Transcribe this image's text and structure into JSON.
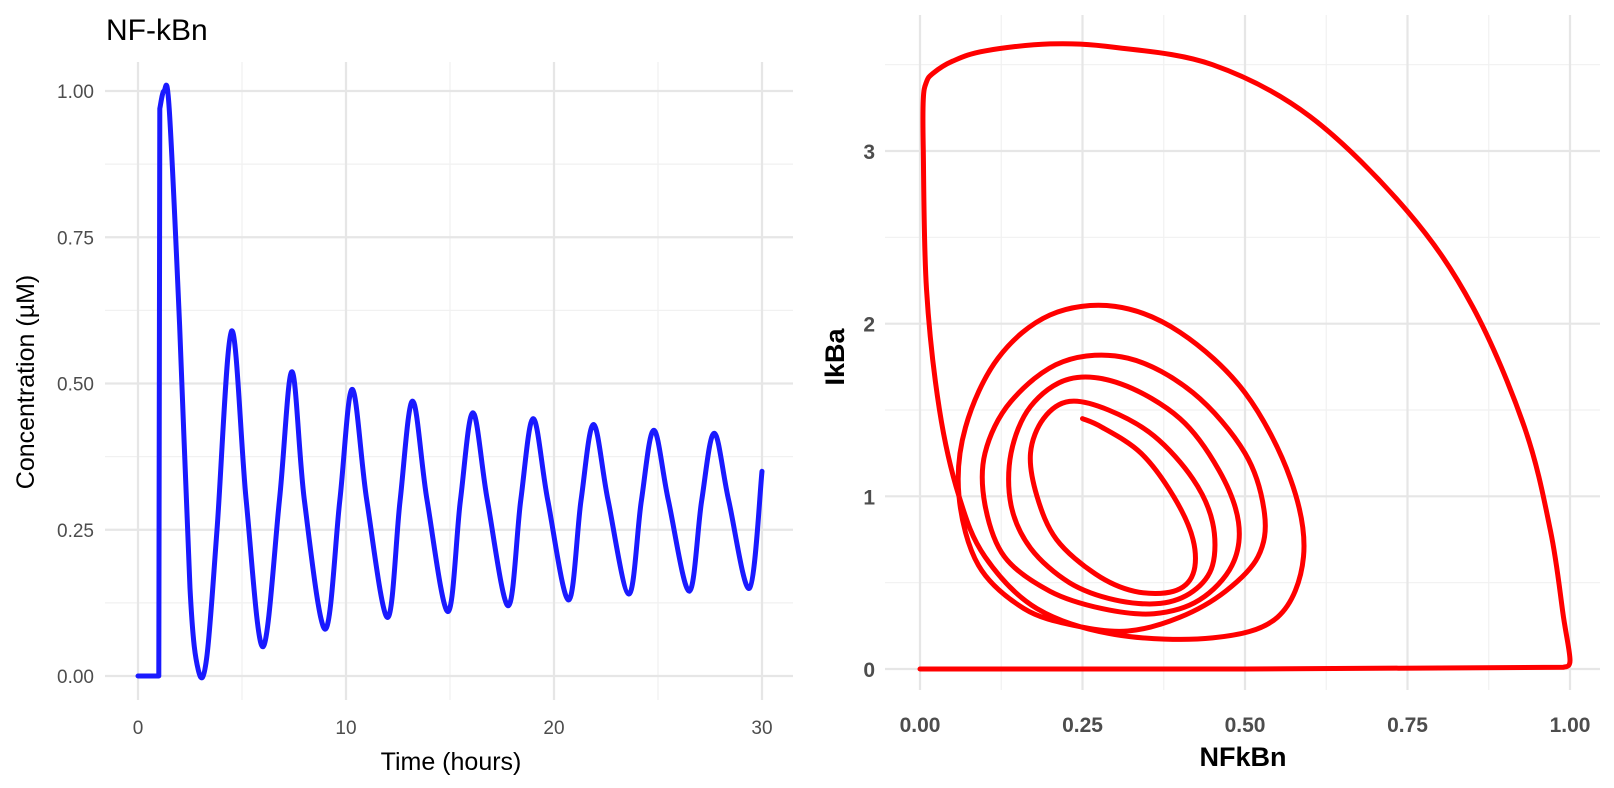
{
  "chart_data": [
    {
      "type": "line",
      "title": "NF-kBn",
      "xlabel": "Time (hours)",
      "ylabel": "Concentration (µM)",
      "xlim": [
        0,
        30
      ],
      "ylim": [
        0,
        1
      ],
      "x_ticks": [
        "0",
        "10",
        "20",
        "30"
      ],
      "y_ticks": [
        "0.00",
        "0.25",
        "0.50",
        "0.75",
        "1.00"
      ],
      "grid": true,
      "color": "#1a1aff",
      "series": [
        {
          "x": [
            0,
            1.0,
            1.05,
            1.25,
            1.5,
            2.0,
            2.5,
            2.9,
            3.3,
            3.8,
            4.5,
            5.2,
            6.0,
            6.8,
            7.4,
            8.0,
            9.0,
            9.7,
            10.3,
            11.0,
            12.0,
            12.6,
            13.2,
            13.9,
            14.9,
            15.5,
            16.1,
            16.8,
            17.8,
            18.4,
            19.0,
            19.7,
            20.7,
            21.3,
            21.9,
            22.6,
            23.6,
            24.2,
            24.8,
            25.5,
            26.5,
            27.1,
            27.7,
            28.4,
            29.4,
            30.0
          ],
          "y": [
            0,
            0,
            0.97,
            1.0,
            0.97,
            0.6,
            0.15,
            0.01,
            0.03,
            0.25,
            0.59,
            0.3,
            0.05,
            0.3,
            0.52,
            0.3,
            0.08,
            0.3,
            0.49,
            0.3,
            0.1,
            0.3,
            0.47,
            0.3,
            0.11,
            0.3,
            0.45,
            0.3,
            0.12,
            0.3,
            0.44,
            0.3,
            0.13,
            0.3,
            0.43,
            0.3,
            0.14,
            0.3,
            0.42,
            0.3,
            0.145,
            0.3,
            0.415,
            0.3,
            0.15,
            0.35
          ]
        }
      ]
    },
    {
      "type": "line",
      "title": "",
      "xlabel": "NFkBn",
      "ylabel": "IkBa",
      "xlim": [
        0,
        1
      ],
      "ylim": [
        0,
        3.5
      ],
      "x_ticks": [
        "0.00",
        "0.25",
        "0.50",
        "0.75",
        "1.00"
      ],
      "y_ticks": [
        "0",
        "1",
        "2",
        "3"
      ],
      "grid": true,
      "color": "#ff0000",
      "series": [
        {
          "x": [
            0,
            0.5,
            0.99,
            1.0,
            0.99,
            0.97,
            0.93,
            0.85,
            0.75,
            0.6,
            0.45,
            0.3,
            0.2,
            0.1,
            0.05,
            0.02,
            0.01,
            0.005,
            0.005,
            0.01,
            0.03,
            0.06,
            0.1,
            0.18,
            0.3,
            0.45,
            0.55,
            0.59,
            0.57,
            0.5,
            0.4,
            0.3,
            0.2,
            0.12,
            0.07,
            0.06,
            0.09,
            0.16,
            0.24,
            0.32,
            0.4,
            0.47,
            0.52,
            0.53,
            0.5,
            0.42,
            0.32,
            0.22,
            0.14,
            0.1,
            0.1,
            0.13,
            0.2,
            0.28,
            0.36,
            0.43,
            0.48,
            0.49,
            0.46,
            0.4,
            0.31,
            0.23,
            0.17,
            0.14,
            0.14,
            0.17,
            0.23,
            0.3,
            0.37,
            0.42,
            0.45,
            0.45,
            0.42,
            0.36,
            0.29,
            0.23,
            0.19,
            0.17,
            0.18,
            0.21,
            0.27,
            0.33,
            0.39,
            0.42,
            0.42,
            0.39,
            0.34,
            0.28,
            0.25
          ],
          "y": [
            0,
            0,
            0.01,
            0.05,
            0.3,
            0.8,
            1.4,
            2.1,
            2.65,
            3.2,
            3.5,
            3.6,
            3.62,
            3.58,
            3.52,
            3.45,
            3.4,
            3.3,
            3.0,
            2.2,
            1.5,
            1.0,
            0.65,
            0.35,
            0.2,
            0.18,
            0.3,
            0.65,
            1.1,
            1.6,
            1.95,
            2.1,
            2.05,
            1.8,
            1.4,
            1.0,
            0.6,
            0.35,
            0.25,
            0.22,
            0.3,
            0.45,
            0.65,
            0.9,
            1.25,
            1.6,
            1.8,
            1.78,
            1.55,
            1.25,
            0.95,
            0.65,
            0.45,
            0.35,
            0.32,
            0.4,
            0.6,
            0.85,
            1.15,
            1.45,
            1.65,
            1.68,
            1.52,
            1.25,
            0.95,
            0.7,
            0.5,
            0.4,
            0.38,
            0.45,
            0.6,
            0.85,
            1.1,
            1.35,
            1.5,
            1.55,
            1.45,
            1.25,
            1.0,
            0.75,
            0.55,
            0.45,
            0.45,
            0.55,
            0.75,
            1.0,
            1.25,
            1.4,
            1.45
          ]
        }
      ]
    }
  ]
}
